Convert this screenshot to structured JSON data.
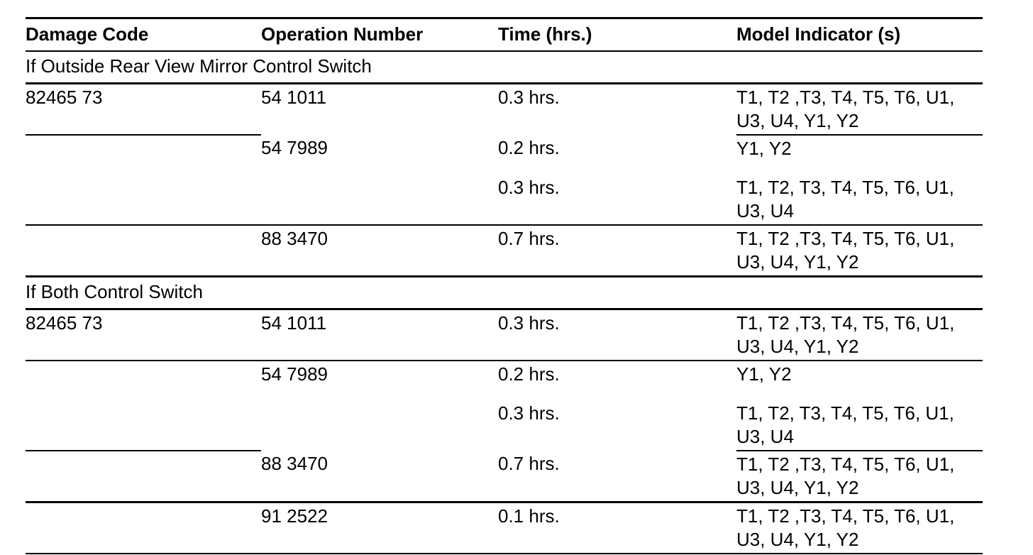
{
  "page": {
    "background": "#ffffff",
    "text_color": "#000000",
    "rule_color": "#000000"
  },
  "table": {
    "columns": [
      {
        "key": "damage_code",
        "label": "Damage Code"
      },
      {
        "key": "operation_number",
        "label": "Operation Number"
      },
      {
        "key": "time",
        "label": "Time (hrs.)"
      },
      {
        "key": "model_indicator",
        "label": "Model Indicator (s)"
      }
    ],
    "sections": [
      {
        "title": "If Outside Rear View Mirror Control Switch",
        "rows": [
          {
            "damage_code": "82465 73",
            "operation_number": "54 1011",
            "time": "0.3 hrs.",
            "model_indicator": "T1, T2 ,T3, T4, T5, T6, U1, U3, U4, Y1, Y2"
          },
          {
            "damage_code": "",
            "operation_number": "54 7989",
            "time": "0.2 hrs.",
            "model_indicator": "Y1, Y2"
          },
          {
            "damage_code": "",
            "operation_number": "",
            "time": "0.3 hrs.",
            "model_indicator": "T1, T2, T3, T4, T5, T6, U1, U3, U4"
          },
          {
            "damage_code": "",
            "operation_number": "88 3470",
            "time": "0.7 hrs.",
            "model_indicator": "T1, T2 ,T3, T4, T5, T6, U1, U3, U4, Y1, Y2"
          }
        ]
      },
      {
        "title": "If Both Control Switch",
        "rows": [
          {
            "damage_code": "82465 73",
            "operation_number": "54 1011",
            "time": "0.3 hrs.",
            "model_indicator": "T1, T2 ,T3, T4, T5, T6, U1, U3, U4, Y1, Y2"
          },
          {
            "damage_code": "",
            "operation_number": "54 7989",
            "time": "0.2 hrs.",
            "model_indicator": "Y1, Y2"
          },
          {
            "damage_code": "",
            "operation_number": "",
            "time": "0.3 hrs.",
            "model_indicator": "T1, T2, T3, T4, T5, T6, U1, U3, U4"
          },
          {
            "damage_code": "",
            "operation_number": "88 3470",
            "time": "0.7 hrs.",
            "model_indicator": "T1, T2 ,T3, T4, T5, T6, U1, U3, U4, Y1, Y2"
          },
          {
            "damage_code": "",
            "operation_number": "91 2522",
            "time": "0.1 hrs.",
            "model_indicator": "T1, T2 ,T3, T4, T5, T6, U1, U3, U4, Y1, Y2"
          }
        ]
      }
    ]
  }
}
